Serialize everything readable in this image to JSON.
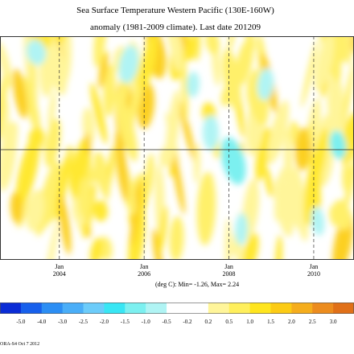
{
  "chart_data": {
    "type": "heatmap",
    "title_line1": "Sea Surface Temperature Western Pacific (130E-160W)",
    "title_line2": "anomaly (1981-2009 climate). Last date 201209",
    "x_ticks": [
      {
        "month": "Jan",
        "year": "2004",
        "value": 2004.0
      },
      {
        "month": "Jan",
        "year": "2006",
        "value": 2006.0
      },
      {
        "month": "Jan",
        "year": "2008",
        "value": 2008.0
      },
      {
        "month": "Jan",
        "year": "2010",
        "value": 2010.0
      }
    ],
    "xlim": [
      2002.6,
      2010.95
    ],
    "caption": "(deg C): Min= -1.26, Max= 2.24",
    "colorbar": {
      "labels": [
        "-5.0",
        "-4.0",
        "-3.0",
        "-2.5",
        "-2.0",
        "-1.5",
        "-1.0",
        "-0.5",
        "-0.2",
        "0.2",
        "0.5",
        "1.0",
        "1.5",
        "2.0",
        "2.5",
        "3.0"
      ],
      "colors": [
        "#0a2cd6",
        "#1760ec",
        "#2c8ef4",
        "#4aaef8",
        "#6cccfa",
        "#38e6f4",
        "#7cf0f0",
        "#b0f4f4",
        "#ffffff",
        "#ffffff",
        "#fff59a",
        "#ffef5c",
        "#ffe51e",
        "#fccb14",
        "#f5ad1c",
        "#ec8c1e",
        "#e07018"
      ]
    },
    "footer": "ORA-S4 Oct 7 2012"
  }
}
